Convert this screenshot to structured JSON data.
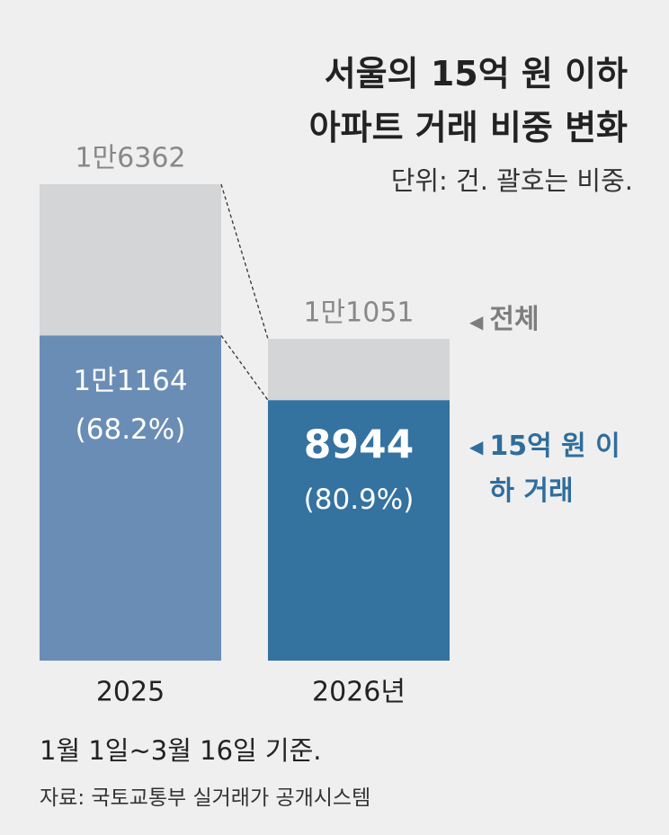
{
  "chart_data": {
    "type": "bar",
    "title": [
      "서울의 15억 원 이하",
      "아파트 거래 비중 변화"
    ],
    "subtitle": "단위: 건. 괄호는 비중.",
    "categories": [
      "2025",
      "2026년"
    ],
    "totals": {
      "name": "전체",
      "color": "#d4d5d7",
      "values": [
        16362,
        11051
      ],
      "value_labels": [
        "1만6362",
        "1만1051"
      ]
    },
    "series": [
      {
        "name": "15억 원 이하 거래",
        "color": "#2f6d9c",
        "colors": [
          "#6a8db5",
          "#34729f"
        ],
        "values": [
          11164,
          8944
        ],
        "value_labels": [
          "1만1164",
          "8944"
        ],
        "shares": [
          68.2,
          80.9
        ],
        "share_labels": [
          "(68.2%)",
          "(80.9%)"
        ]
      }
    ],
    "note": "1월 1일~3월 16일 기준.",
    "source": "자료: 국토교통부 실거래가 공개시스템"
  }
}
